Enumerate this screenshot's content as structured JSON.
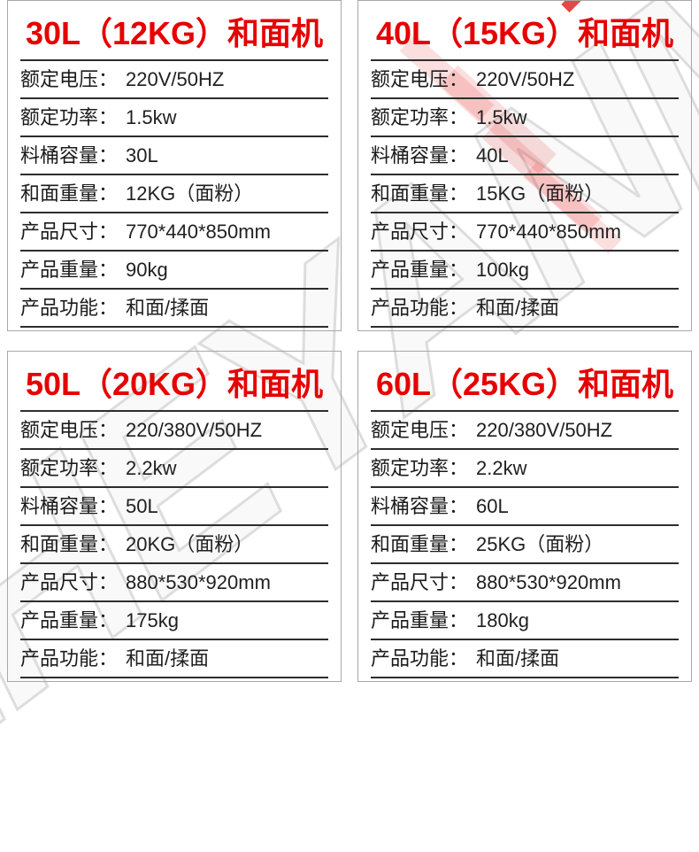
{
  "colors": {
    "title_red": "#e60000",
    "rule_line": "#2d2d2d",
    "panel_border": "#a8a8a8",
    "text": "#1f1f1f",
    "watermark_gray": "#bdbdbd",
    "watermark_red": "#e61414"
  },
  "watermark": {
    "text": "ZHEYANMAI"
  },
  "panels": [
    {
      "title": "30L（12KG）和面机",
      "rows": [
        {
          "label": "额定电压：",
          "value": "220V/50HZ"
        },
        {
          "label": "额定功率：",
          "value": "1.5kw"
        },
        {
          "label": "料桶容量：",
          "value": "30L"
        },
        {
          "label": "和面重量：",
          "value": "12KG（面粉）"
        },
        {
          "label": "产品尺寸：",
          "value": "770*440*850mm"
        },
        {
          "label": "产品重量：",
          "value": "90kg"
        },
        {
          "label": "产品功能：",
          "value": "和面/揉面"
        }
      ]
    },
    {
      "title": "40L（15KG）和面机",
      "rows": [
        {
          "label": "额定电压：",
          "value": "220V/50HZ"
        },
        {
          "label": "额定功率：",
          "value": "1.5kw"
        },
        {
          "label": "料桶容量：",
          "value": "40L"
        },
        {
          "label": "和面重量：",
          "value": "15KG（面粉）"
        },
        {
          "label": "产品尺寸：",
          "value": "770*440*850mm"
        },
        {
          "label": "产品重量：",
          "value": "100kg"
        },
        {
          "label": "产品功能：",
          "value": "和面/揉面"
        }
      ]
    },
    {
      "title": "50L（20KG）和面机",
      "rows": [
        {
          "label": "额定电压：",
          "value": "220/380V/50HZ"
        },
        {
          "label": "额定功率：",
          "value": "2.2kw"
        },
        {
          "label": "料桶容量：",
          "value": "50L"
        },
        {
          "label": "和面重量：",
          "value": "20KG（面粉）"
        },
        {
          "label": "产品尺寸：",
          "value": "880*530*920mm"
        },
        {
          "label": "产品重量：",
          "value": "175kg"
        },
        {
          "label": "产品功能：",
          "value": "和面/揉面"
        }
      ]
    },
    {
      "title": "60L（25KG）和面机",
      "rows": [
        {
          "label": "额定电压：",
          "value": "220/380V/50HZ"
        },
        {
          "label": "额定功率：",
          "value": "2.2kw"
        },
        {
          "label": "料桶容量：",
          "value": "60L"
        },
        {
          "label": "和面重量：",
          "value": "25KG（面粉）"
        },
        {
          "label": "产品尺寸：",
          "value": "880*530*920mm"
        },
        {
          "label": "产品重量：",
          "value": "180kg"
        },
        {
          "label": "产品功能：",
          "value": "和面/揉面"
        }
      ]
    }
  ]
}
